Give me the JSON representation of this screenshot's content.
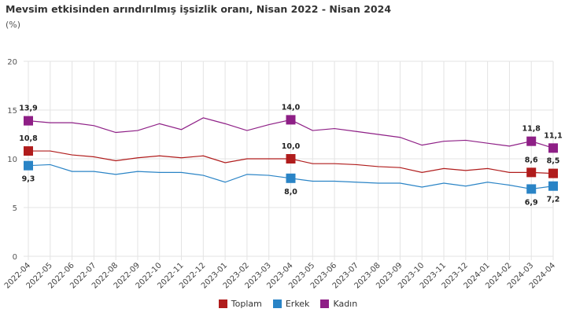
{
  "chart_data": {
    "type": "line",
    "title": "Mevsim etkisinden arındırılmış işsizlik oranı, Nisan 2022 - Nisan 2024",
    "subtitle": "(%)",
    "xlabel": "",
    "ylabel": "",
    "ylim": [
      0,
      20
    ],
    "yticks": [
      "0",
      "5",
      "10",
      "15",
      "20"
    ],
    "grid": true,
    "legend": "bottom",
    "categories": [
      "2022-04",
      "2022-05",
      "2022-06",
      "2022-07",
      "2022-08",
      "2022-09",
      "2022-10",
      "2022-11",
      "2022-12",
      "2023-01",
      "2023-02",
      "2023-03",
      "2023-04",
      "2023-05",
      "2023-06",
      "2023-07",
      "2023-08",
      "2023-09",
      "2023-10",
      "2023-11",
      "2023-12",
      "2024-01",
      "2024-02",
      "2024-03",
      "2024-04"
    ],
    "series": [
      {
        "name": "Toplam",
        "color": "#b01c1c",
        "values": [
          10.8,
          10.8,
          10.4,
          10.2,
          9.8,
          10.1,
          10.3,
          10.1,
          10.3,
          9.6,
          10.0,
          10.0,
          10.0,
          9.5,
          9.5,
          9.4,
          9.2,
          9.1,
          8.6,
          9.0,
          8.8,
          9.0,
          8.6,
          8.6,
          8.5
        ],
        "labels": {
          "0": "10,8",
          "12": "10,0",
          "23": "8,6",
          "24": "8,5"
        },
        "label_pos": "above"
      },
      {
        "name": "Erkek",
        "color": "#2a84c6",
        "values": [
          9.3,
          9.4,
          8.7,
          8.7,
          8.4,
          8.7,
          8.6,
          8.6,
          8.3,
          7.6,
          8.4,
          8.3,
          8.0,
          7.7,
          7.7,
          7.6,
          7.5,
          7.5,
          7.1,
          7.5,
          7.2,
          7.6,
          7.3,
          6.9,
          7.2
        ],
        "labels": {
          "0": "9,3",
          "12": "8,0",
          "23": "6,9",
          "24": "7,2"
        },
        "label_pos": "below"
      },
      {
        "name": "Kadın",
        "color": "#8e1f86",
        "values": [
          13.9,
          13.7,
          13.7,
          13.4,
          12.7,
          12.9,
          13.6,
          13.0,
          14.2,
          13.6,
          12.9,
          13.5,
          14.0,
          12.9,
          13.1,
          12.8,
          12.5,
          12.2,
          11.4,
          11.8,
          11.9,
          11.6,
          11.3,
          11.8,
          11.1
        ],
        "labels": {
          "0": "13,9",
          "12": "14,0",
          "23": "11,8",
          "24": "11,1"
        },
        "label_pos": "above"
      }
    ]
  }
}
